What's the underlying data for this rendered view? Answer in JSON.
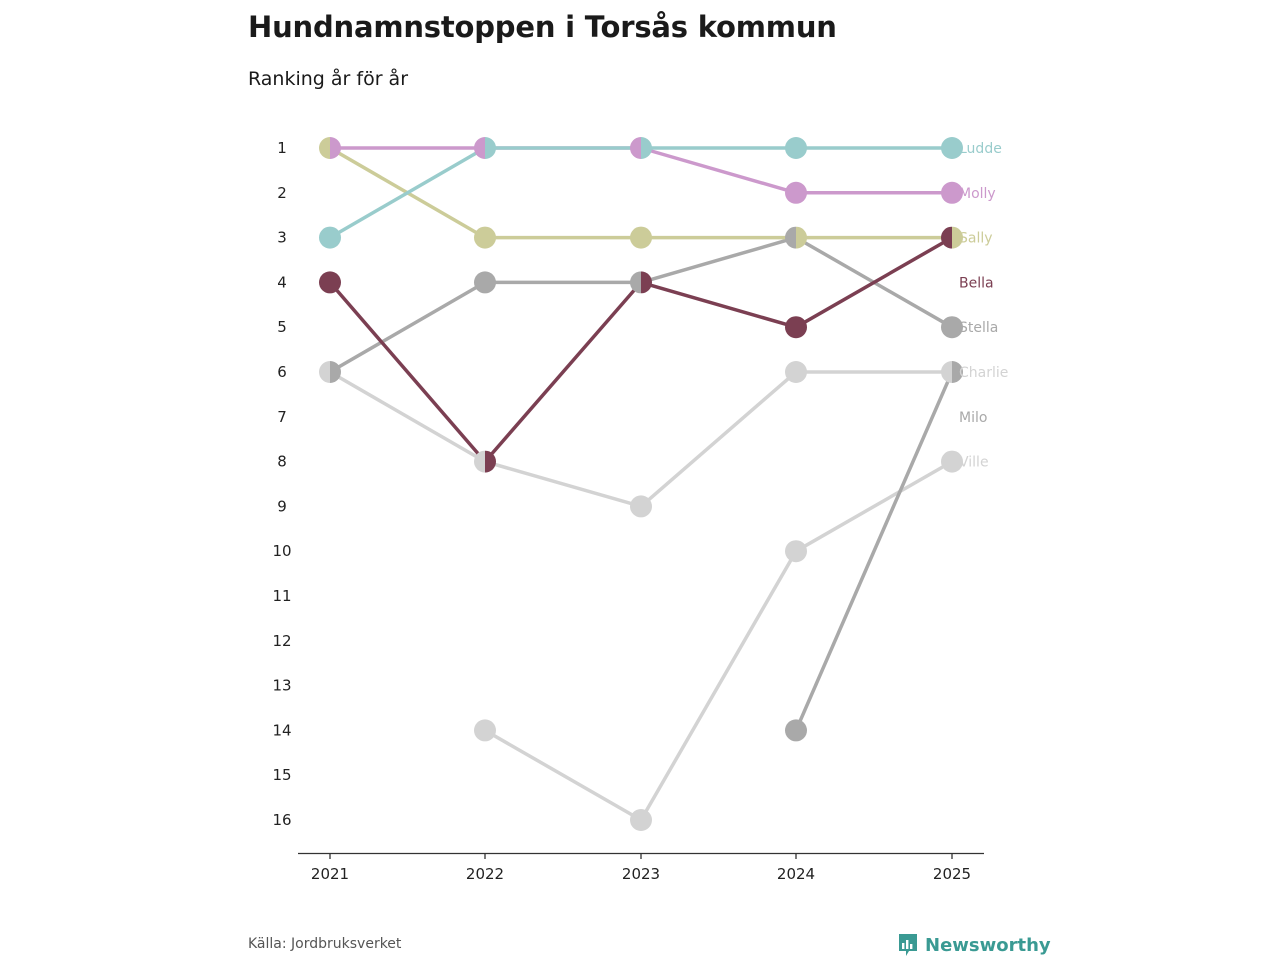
{
  "title": "Hundnamnstoppen i Torsås kommun",
  "subtitle": "Ranking år för år",
  "source": "Källa: Jordbruksverket",
  "brand": "Newsworthy",
  "chart_data": {
    "type": "line",
    "x": [
      "2021",
      "2022",
      "2023",
      "2024",
      "2025"
    ],
    "y_ticks": [
      1,
      2,
      3,
      4,
      5,
      6,
      7,
      8,
      9,
      10,
      11,
      12,
      13,
      14,
      15,
      16
    ],
    "ylim": [
      1,
      16
    ],
    "y_reversed": true,
    "grid": false,
    "legend": "labels at right end of lines",
    "series": [
      {
        "name": "Ville",
        "color": "#d3d3d3",
        "values": [
          null,
          14,
          16,
          10,
          8
        ]
      },
      {
        "name": "Charlie",
        "color": "#d3d3d3",
        "values": [
          6,
          8,
          9,
          6,
          6
        ]
      },
      {
        "name": "Milo",
        "color": "#a9a9a9",
        "values": [
          null,
          null,
          null,
          14,
          6
        ]
      },
      {
        "name": "Stella",
        "color": "#a9a9a9",
        "values": [
          6,
          4,
          4,
          3,
          5
        ]
      },
      {
        "name": "Bella",
        "color": "#7b3f52",
        "values": [
          4,
          8,
          4,
          5,
          3
        ]
      },
      {
        "name": "Sally",
        "color": "#cccc99",
        "values": [
          1,
          3,
          3,
          3,
          3
        ]
      },
      {
        "name": "Molly",
        "color": "#cc99cc",
        "values": [
          1,
          1,
          1,
          2,
          2
        ]
      },
      {
        "name": "Ludde",
        "color": "#99cccc",
        "values": [
          3,
          1,
          1,
          1,
          1
        ]
      }
    ],
    "label_order": [
      "Ludde",
      "Molly",
      "Sally",
      "Bella",
      "Stella",
      "Charlie",
      "Milo",
      "Ville"
    ]
  }
}
